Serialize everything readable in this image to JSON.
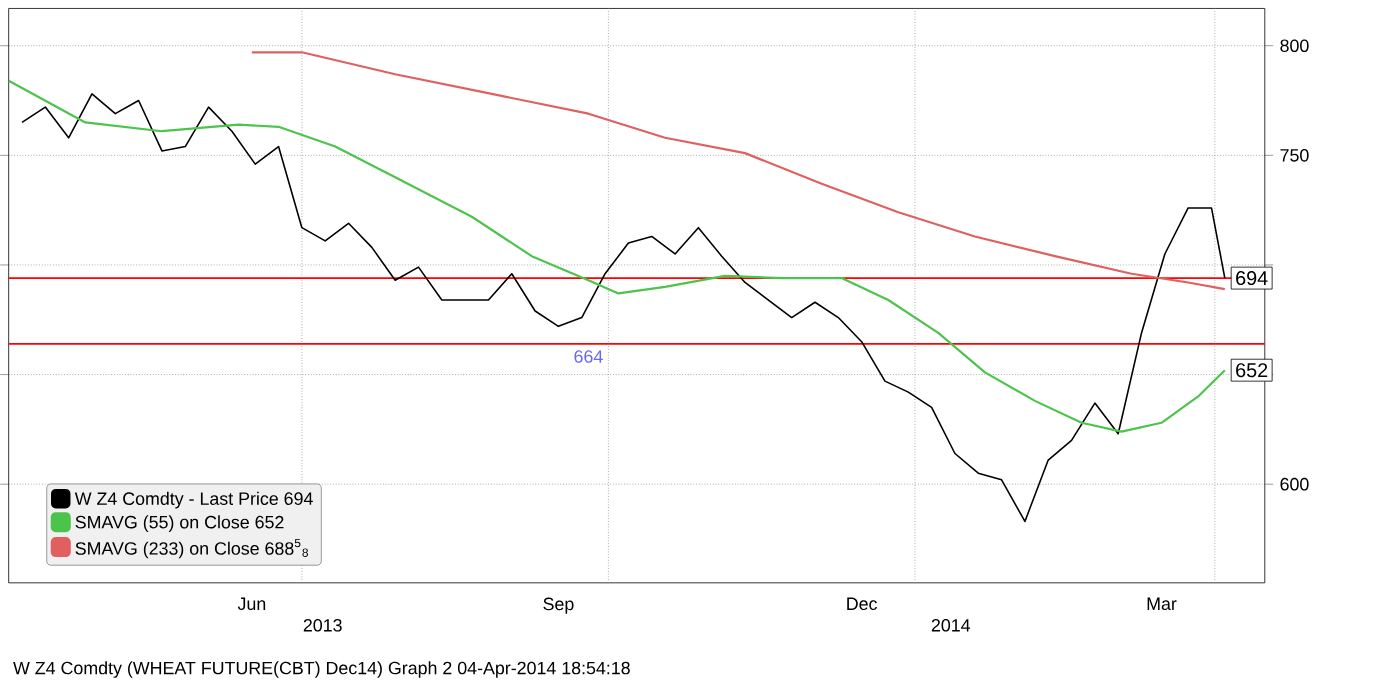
{
  "chart_data": {
    "type": "line",
    "xlim": [
      "2013-04-04",
      "2014-04-16"
    ],
    "ylim": [
      555,
      817
    ],
    "xticks": [
      {
        "value": "2013-06-16",
        "label": "Jun"
      },
      {
        "value": "2013-09-16",
        "label": "Sep"
      },
      {
        "value": "2013-12-16",
        "label": "Dec"
      },
      {
        "value": "2014-03-16",
        "label": "Mar"
      }
    ],
    "yticks": [
      600,
      {
        "value": 650,
        "label": null
      },
      {
        "value": 700,
        "label": null
      },
      750,
      800
    ],
    "grid": "y",
    "legend": "bottom left",
    "series": [
      {
        "name": "W Z4 Comdty - Last Price 694",
        "color": "#000000",
        "x": [
          "2013-04-08",
          "2013-04-15",
          "2013-04-22",
          "2013-04-29",
          "2013-05-06",
          "2013-05-13",
          "2013-05-20",
          "2013-05-27",
          "2013-06-03",
          "2013-06-10",
          "2013-06-17",
          "2013-06-24",
          "2013-07-01",
          "2013-07-08",
          "2013-07-15",
          "2013-07-22",
          "2013-07-29",
          "2013-08-05",
          "2013-08-12",
          "2013-08-19",
          "2013-08-26",
          "2013-09-02",
          "2013-09-09",
          "2013-09-16",
          "2013-09-23",
          "2013-09-30",
          "2013-10-07",
          "2013-10-14",
          "2013-10-21",
          "2013-10-28",
          "2013-11-04",
          "2013-11-11",
          "2013-11-18",
          "2013-11-25",
          "2013-12-02",
          "2013-12-09",
          "2013-12-16",
          "2013-12-23",
          "2013-12-30",
          "2014-01-06",
          "2014-01-13",
          "2014-01-20",
          "2014-01-27",
          "2014-02-03",
          "2014-02-10",
          "2014-02-17",
          "2014-02-24",
          "2014-03-03",
          "2014-03-10",
          "2014-03-17",
          "2014-03-24",
          "2014-03-31",
          "2014-04-04"
        ],
        "values": [
          765,
          772,
          758,
          778,
          769,
          775,
          752,
          754,
          772,
          761,
          746,
          754,
          717,
          711,
          719,
          708,
          693,
          699,
          684,
          684,
          684,
          696,
          679,
          672,
          676,
          696,
          710,
          713,
          705,
          717,
          704,
          692,
          684,
          676,
          683,
          676,
          665,
          647,
          642,
          635,
          614,
          605,
          602,
          583,
          611,
          620,
          637,
          623,
          669,
          705,
          726,
          726,
          694
        ]
      },
      {
        "name": "SMAVG (55) on Close 652",
        "color": "#4cc44c",
        "x": [
          "2013-04-04",
          "2013-04-27",
          "2013-05-20",
          "2013-06-12",
          "2013-06-24",
          "2013-07-11",
          "2013-07-29",
          "2013-08-21",
          "2013-09-08",
          "2013-09-25",
          "2013-10-04",
          "2013-10-18",
          "2013-11-05",
          "2013-11-22",
          "2013-12-10",
          "2013-12-24",
          "2014-01-08",
          "2014-01-22",
          "2014-02-06",
          "2014-02-20",
          "2014-03-04",
          "2014-03-16",
          "2014-03-27",
          "2014-04-04"
        ],
        "values": [
          784,
          765,
          761,
          764,
          763,
          754,
          740,
          722,
          704,
          693,
          687,
          690,
          695,
          694,
          694,
          684,
          669,
          651,
          638,
          628,
          624,
          628,
          640,
          652
        ]
      },
      {
        "name": "SMAVG (233) on Close 688$^{5}$$_{8}$",
        "color": "#e06060",
        "x": [
          "2013-06-16",
          "2013-07-01",
          "2013-07-29",
          "2013-08-27",
          "2013-09-25",
          "2013-10-18",
          "2013-11-11",
          "2013-12-04",
          "2013-12-27",
          "2014-01-19",
          "2014-02-12",
          "2014-03-07",
          "2014-03-24",
          "2014-04-04"
        ],
        "values": [
          797,
          797,
          787,
          778,
          769,
          758,
          751,
          737,
          724,
          713,
          704,
          696,
          692,
          689
        ]
      }
    ],
    "ref_lines": [
      {
        "axis": "y",
        "value": 664,
        "label": "664",
        "color": "#ff0000"
      },
      {
        "axis": "y",
        "value": 694,
        "color": "#ff0000"
      },
      {
        "axis": "x",
        "value": "2013-07-01",
        "color": "#808080",
        "line_style": "dotted"
      },
      {
        "axis": "x",
        "value": "2013-10-01",
        "color": "#808080",
        "line_style": "dotted"
      },
      {
        "axis": "x",
        "value": "2014-01-01",
        "color": "#808080",
        "line_style": "dotted"
      },
      {
        "axis": "x",
        "value": "2014-04-01",
        "color": "#808080",
        "line_style": "dotted"
      }
    ],
    "annotations": [
      {
        "text": "694",
        "x": "2014-04-04",
        "y": 694
      },
      {
        "text": "652",
        "x": "2014-04-04",
        "y": 652
      },
      "2013",
      "2014",
      "W Z4 Comdty (WHEAT FUTURE(CBT) Dec14) Graph 2  04-Apr-2014 18:54:18"
    ]
  }
}
